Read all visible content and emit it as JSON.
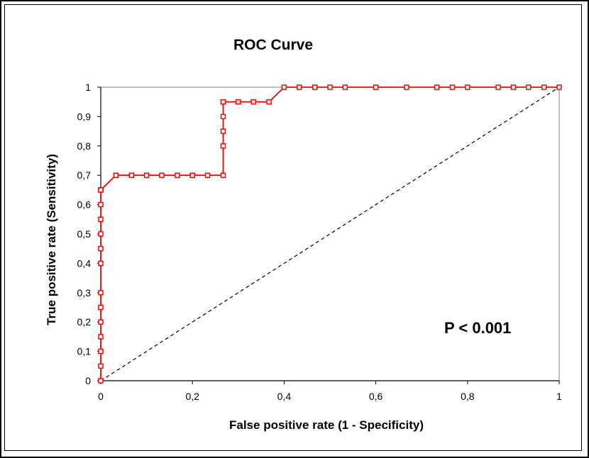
{
  "chart_data": {
    "type": "line",
    "title": "ROC Curve",
    "xlabel": "False positive rate (1 - Specificity)",
    "ylabel": "True positive rate (Sensitivity)",
    "xlim": [
      0,
      1
    ],
    "ylim": [
      0,
      1
    ],
    "x_ticks": [
      "0",
      "0,2",
      "0,4",
      "0,6",
      "0,8",
      "1"
    ],
    "y_ticks": [
      "0",
      "0,1",
      "0,2",
      "0,3",
      "0,4",
      "0,5",
      "0,6",
      "0,7",
      "0,8",
      "0,9",
      "1"
    ],
    "grid": false,
    "annotation": "P < 0.001",
    "colors": {
      "roc": "#ff0000",
      "reference": "#000000"
    },
    "series": [
      {
        "style": "solid red line with square markers",
        "x": [
          0,
          0,
          0,
          0,
          0,
          0,
          0,
          0,
          0,
          0,
          0,
          0,
          0,
          0,
          0,
          0.033,
          0.067,
          0.1,
          0.133,
          0.167,
          0.2,
          0.233,
          0.267,
          0.267,
          0.267,
          0.267,
          0.267,
          0.267,
          0.3,
          0.333,
          0.367,
          0.4,
          0.433,
          0.467,
          0.5,
          0.533,
          0.6,
          0.667,
          0.733,
          0.767,
          0.8,
          0.867,
          0.9,
          0.933,
          0.967,
          1
        ],
        "y": [
          0,
          0.05,
          0.1,
          0.15,
          0.2,
          0.25,
          0.3,
          0.4,
          0.45,
          0.5,
          0.55,
          0.6,
          0.65,
          0.65,
          0.65,
          0.7,
          0.7,
          0.7,
          0.7,
          0.7,
          0.7,
          0.7,
          0.7,
          0.8,
          0.85,
          0.9,
          0.95,
          0.95,
          0.95,
          0.95,
          0.95,
          1,
          1,
          1,
          1,
          1,
          1,
          1,
          1,
          1,
          1,
          1,
          1,
          1,
          1,
          1
        ]
      },
      {
        "style": "dashed black diagonal reference line",
        "x": [
          0,
          1
        ],
        "y": [
          0,
          1
        ]
      }
    ]
  }
}
